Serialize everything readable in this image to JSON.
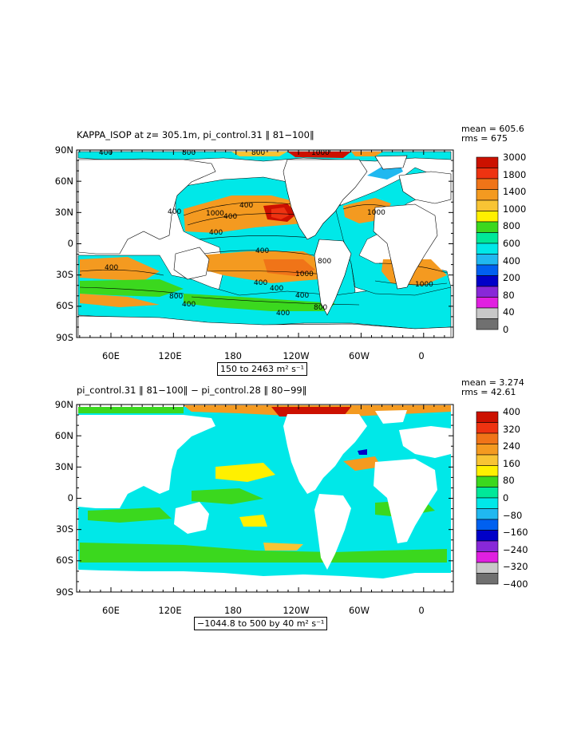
{
  "panels": [
    {
      "title": "KAPPA_ISOP at z= 305.1m, pi_control.31 ‖ 81−100‖",
      "mean": "mean = 605.6",
      "rms": "rms = 675",
      "range_label": "150 to 2463 m² s⁻¹",
      "y_ticks": [
        "90N",
        "60N",
        "30N",
        "0",
        "30S",
        "60S",
        "90S"
      ],
      "x_ticks": [
        "60E",
        "120E",
        "180",
        "120W",
        "60W",
        "0"
      ],
      "colorbar_labels": [
        "3000",
        "1800",
        "1400",
        "1000",
        "800",
        "600",
        "400",
        "200",
        "80",
        "40",
        "0"
      ],
      "colorbar_colors": [
        "#cc1100",
        "#ee3311",
        "#f07418",
        "#f49a20",
        "#f8c434",
        "#fff000",
        "#3bd81e",
        "#00e899",
        "#00e8e8",
        "#20b8f0",
        "#0060f0",
        "#0000c8",
        "#8828d8",
        "#e020e0",
        "#c8c8c8",
        "#707070"
      ],
      "contour_labels": [
        "400",
        "800",
        "800",
        "1000",
        "400",
        "400",
        "400",
        "400",
        "1000",
        "400",
        "400",
        "800",
        "1000",
        "1000",
        "800",
        "400",
        "400",
        "400",
        "800",
        "400",
        "1000",
        "400"
      ]
    },
    {
      "title": "pi_control.31 ‖ 81−100‖ − pi_control.28 ‖ 80−99‖",
      "mean": "mean = 3.274",
      "rms": "rms = 42.61",
      "range_label": "−1044.8 to 500 by 40 m² s⁻¹",
      "y_ticks": [
        "90N",
        "60N",
        "30N",
        "0",
        "30S",
        "60S",
        "90S"
      ],
      "x_ticks": [
        "60E",
        "120E",
        "180",
        "120W",
        "60W",
        "0"
      ],
      "colorbar_labels": [
        "400",
        "320",
        "240",
        "160",
        "80",
        "0",
        "−80",
        "−160",
        "−240",
        "−320",
        "−400"
      ],
      "colorbar_colors": [
        "#cc1100",
        "#ee3311",
        "#f07418",
        "#f49a20",
        "#f8c434",
        "#fff000",
        "#3bd81e",
        "#00e899",
        "#00e8e8",
        "#20b8f0",
        "#0060f0",
        "#0000c8",
        "#8828d8",
        "#e020e0",
        "#c8c8c8",
        "#707070"
      ]
    }
  ]
}
